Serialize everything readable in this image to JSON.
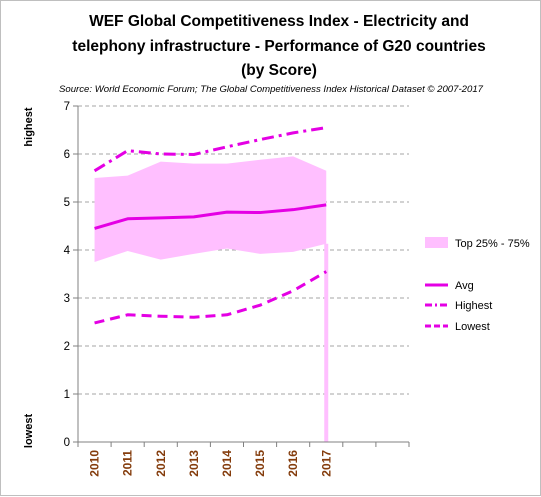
{
  "chart_data": {
    "type": "line",
    "title_lines": [
      "WEF Global Competitiveness Index - Electricity and",
      "telephony infrastructure - Performance of G20 countries",
      "(by  Score)"
    ],
    "source": "Source: World Economic Forum; The Global Competitiveness Index Historical Dataset © 2007-2017",
    "y_side_labels": {
      "top": "highest",
      "bottom": "lowest"
    },
    "ylim": [
      0,
      7
    ],
    "yticks": [
      "0",
      "1",
      "2",
      "3",
      "4",
      "5",
      "6",
      "7"
    ],
    "grid": "horizontal dashed",
    "legend_position": "right",
    "categories": [
      "2010",
      "2011",
      "2012",
      "2013",
      "2014",
      "2015",
      "2016",
      "2017"
    ],
    "band": {
      "name": "Top 25% - 75%",
      "color": "#ffbfff",
      "lower": [
        3.75,
        3.98,
        3.8,
        3.92,
        4.03,
        3.92,
        3.96,
        4.13
      ],
      "upper": [
        5.5,
        5.55,
        5.84,
        5.8,
        5.8,
        5.88,
        5.95,
        5.65
      ]
    },
    "series": [
      {
        "name": "Avg",
        "color": "#e400e4",
        "style": "solid",
        "values": [
          4.45,
          4.65,
          4.67,
          4.69,
          4.79,
          4.78,
          4.84,
          4.94
        ]
      },
      {
        "name": "Highest",
        "color": "#e400e4",
        "style": "dash-dot",
        "values": [
          5.65,
          6.07,
          6.0,
          5.99,
          6.15,
          6.3,
          6.44,
          6.55
        ]
      },
      {
        "name": "Lowest",
        "color": "#e400e4",
        "style": "dashed",
        "values": [
          2.48,
          2.65,
          2.62,
          2.6,
          2.65,
          2.85,
          3.15,
          3.55
        ]
      }
    ],
    "marker_line": {
      "category": "2017",
      "value": 4.13,
      "color": "#ffbfff"
    }
  }
}
